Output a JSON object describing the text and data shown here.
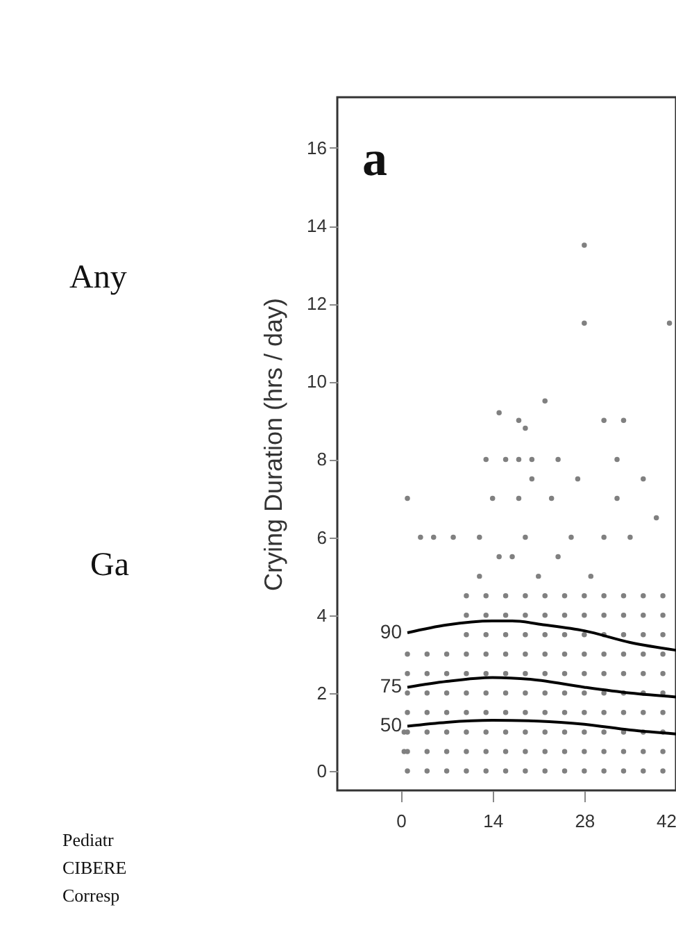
{
  "chart_data": {
    "type": "scatter",
    "ylabel": "Crying Duration (hrs / day)",
    "xlim": [
      -9.7,
      42
    ],
    "xticks": [
      0,
      14,
      28,
      42
    ],
    "ylim": [
      -0.5,
      17.3
    ],
    "yticks": [
      0,
      2,
      4,
      6,
      8,
      10,
      12,
      14,
      16
    ],
    "grid": false,
    "legend": false,
    "annotations": [
      "a",
      "Any",
      "Ga",
      "Pediatr",
      "CIBERE",
      "Corresp"
    ],
    "series": [
      {
        "color": "#808080",
        "marker": "circle",
        "x": [
          1,
          1,
          1,
          1,
          1,
          1,
          1,
          4,
          4,
          4,
          4,
          4,
          4,
          4,
          7,
          7,
          7,
          7,
          7,
          7,
          7,
          10,
          10,
          10,
          10,
          10,
          10,
          10,
          10,
          10,
          10,
          13,
          13,
          13,
          13,
          13,
          13,
          13,
          13,
          13,
          13,
          16,
          16,
          16,
          16,
          16,
          16,
          16,
          16,
          16,
          16,
          19,
          19,
          19,
          19,
          19,
          19,
          19,
          19,
          19,
          19,
          22,
          22,
          22,
          22,
          22,
          22,
          22,
          22,
          22,
          22,
          25,
          25,
          25,
          25,
          25,
          25,
          25,
          25,
          25,
          25,
          28,
          28,
          28,
          28,
          28,
          28,
          28,
          28,
          28,
          28,
          31,
          31,
          31,
          31,
          31,
          31,
          31,
          31,
          31,
          31,
          34,
          34,
          34,
          34,
          34,
          34,
          34,
          34,
          34,
          34,
          37,
          37,
          37,
          37,
          37,
          37,
          37,
          37,
          37,
          37,
          40,
          40,
          40,
          40,
          40,
          40,
          40,
          40,
          40,
          40,
          1,
          3,
          5,
          8,
          12,
          19,
          15,
          21,
          26,
          31,
          35,
          39,
          12,
          17,
          24,
          29,
          14,
          18,
          20,
          23,
          27,
          33,
          37,
          13,
          16,
          18,
          20,
          24,
          33,
          15,
          18,
          19,
          22,
          31,
          34,
          28,
          28,
          41,
          0.5,
          0.5
        ],
        "values": [
          0,
          0.5,
          1,
          1.5,
          2,
          2.5,
          3,
          0,
          0.5,
          1,
          1.5,
          2,
          2.5,
          3,
          0,
          0.5,
          1,
          1.5,
          2,
          2.5,
          3,
          0,
          0.5,
          1,
          1.5,
          2,
          2.5,
          3,
          3.5,
          4,
          4.5,
          0,
          0.5,
          1,
          1.5,
          2,
          2.5,
          3,
          3.5,
          4,
          4.5,
          0,
          0.5,
          1,
          1.5,
          2,
          2.5,
          3,
          3.5,
          4,
          4.5,
          0,
          0.5,
          1,
          1.5,
          2,
          2.5,
          3,
          3.5,
          4,
          4.5,
          0,
          0.5,
          1,
          1.5,
          2,
          2.5,
          3,
          3.5,
          4,
          4.5,
          0,
          0.5,
          1,
          1.5,
          2,
          2.5,
          3,
          3.5,
          4,
          4.5,
          0,
          0.5,
          1,
          1.5,
          2,
          2.5,
          3,
          3.5,
          4,
          4.5,
          0,
          0.5,
          1,
          1.5,
          2,
          2.5,
          3,
          3.5,
          4,
          4.5,
          0,
          0.5,
          1,
          1.5,
          2,
          2.5,
          3,
          3.5,
          4,
          4.5,
          0,
          0.5,
          1,
          1.5,
          2,
          2.5,
          3,
          3.5,
          4,
          4.5,
          0,
          0.5,
          1,
          1.5,
          2,
          2.5,
          3,
          3.5,
          4,
          4.5,
          7,
          6,
          6,
          6,
          6,
          6,
          5.5,
          5,
          6,
          6,
          6,
          6.5,
          5,
          5.5,
          5.5,
          5,
          7,
          7,
          7.5,
          7,
          7.5,
          7,
          7.5,
          8,
          8,
          8,
          8,
          8,
          8,
          9.2,
          9,
          8.8,
          9.5,
          9,
          9,
          13.5,
          11.5,
          11.5,
          0.5,
          1
        ]
      },
      {
        "type": "line",
        "name": "90",
        "color": "#000000",
        "marker": "none",
        "x": [
          1,
          7,
          14,
          17,
          22,
          28,
          35,
          42
        ],
        "values": [
          3.55,
          3.75,
          3.85,
          3.85,
          3.75,
          3.6,
          3.3,
          3.1
        ]
      },
      {
        "type": "line",
        "name": "75",
        "color": "#000000",
        "marker": "none",
        "x": [
          1,
          7,
          14,
          20,
          28,
          35,
          42
        ],
        "values": [
          2.15,
          2.3,
          2.4,
          2.35,
          2.15,
          2.0,
          1.9
        ]
      },
      {
        "type": "line",
        "name": "50",
        "color": "#000000",
        "marker": "none",
        "x": [
          1,
          7,
          14,
          21,
          28,
          35,
          42
        ],
        "values": [
          1.15,
          1.25,
          1.3,
          1.28,
          1.2,
          1.05,
          0.95
        ]
      }
    ]
  }
}
